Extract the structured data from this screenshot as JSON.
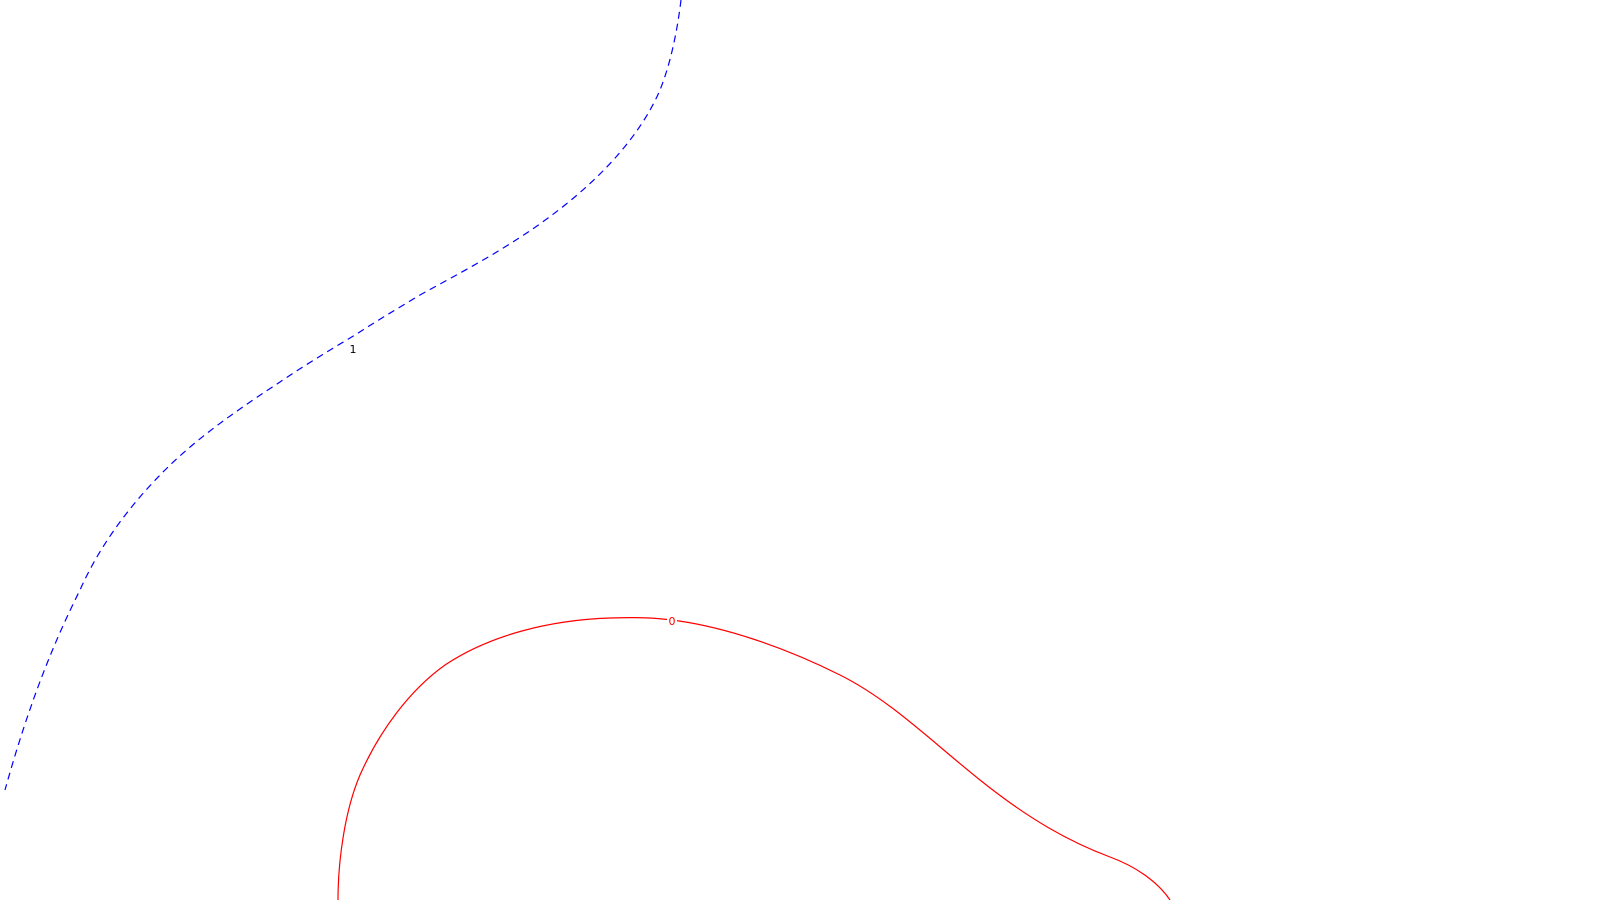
{
  "contours": [
    {
      "level_label": "1",
      "color": "#0000ff",
      "line_style": "dashed"
    },
    {
      "level_label": "0",
      "color": "#ff0000",
      "line_style": "solid"
    }
  ]
}
